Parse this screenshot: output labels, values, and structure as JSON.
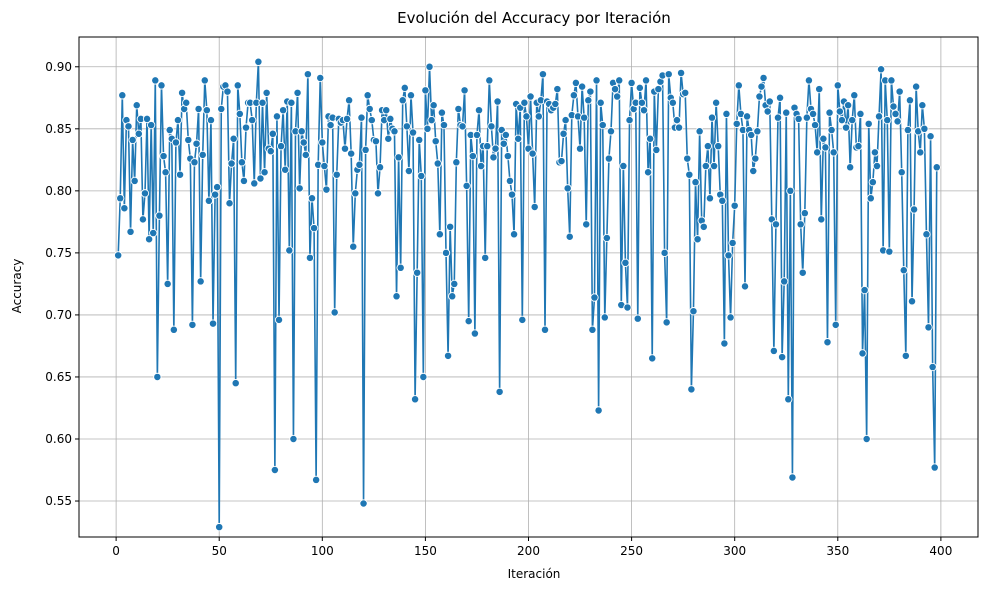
{
  "chart_data": {
    "type": "line",
    "title": "Evolución del Accuracy por Iteración",
    "xlabel": "Iteración",
    "ylabel": "Accuracy",
    "xlim": [
      -18,
      418
    ],
    "ylim": [
      0.521,
      0.924
    ],
    "xticks": [
      0,
      50,
      100,
      150,
      200,
      250,
      300,
      350,
      400
    ],
    "yticks": [
      0.55,
      0.6,
      0.65,
      0.7,
      0.75,
      0.8,
      0.85,
      0.9
    ],
    "ytick_labels": [
      "0.55",
      "0.60",
      "0.65",
      "0.70",
      "0.75",
      "0.80",
      "0.85",
      "0.90"
    ],
    "grid": true,
    "legend": "none",
    "markers": true,
    "colors": {
      "line": "#1f77b4",
      "marker_edge": "#ffffff",
      "grid": "#b0b0b0"
    },
    "series": [
      {
        "x_start": 1,
        "x_step": 1,
        "values": [
          0.748,
          0.794,
          0.877,
          0.786,
          0.857,
          0.852,
          0.767,
          0.841,
          0.808,
          0.869,
          0.846,
          0.858,
          0.777,
          0.798,
          0.858,
          0.761,
          0.853,
          0.766,
          0.889,
          0.65,
          0.78,
          0.885,
          0.828,
          0.815,
          0.725,
          0.849,
          0.842,
          0.688,
          0.839,
          0.857,
          0.813,
          0.879,
          0.866,
          0.871,
          0.841,
          0.826,
          0.692,
          0.823,
          0.838,
          0.866,
          0.727,
          0.829,
          0.889,
          0.865,
          0.792,
          0.857,
          0.693,
          0.797,
          0.803,
          0.529,
          0.866,
          0.884,
          0.885,
          0.88,
          0.79,
          0.822,
          0.842,
          0.645,
          0.885,
          0.862,
          0.823,
          0.808,
          0.851,
          0.871,
          0.871,
          0.857,
          0.806,
          0.871,
          0.904,
          0.81,
          0.871,
          0.815,
          0.879,
          0.834,
          0.832,
          0.846,
          0.575,
          0.86,
          0.696,
          0.836,
          0.865,
          0.817,
          0.872,
          0.752,
          0.871,
          0.6,
          0.848,
          0.879,
          0.802,
          0.848,
          0.839,
          0.829,
          0.894,
          0.746,
          0.794,
          0.77,
          0.567,
          0.821,
          0.891,
          0.839,
          0.82,
          0.801,
          0.86,
          0.853,
          0.859,
          0.702,
          0.813,
          0.858,
          0.855,
          0.857,
          0.834,
          0.858,
          0.873,
          0.83,
          0.755,
          0.798,
          0.817,
          0.821,
          0.859,
          0.548,
          0.833,
          0.877,
          0.866,
          0.857,
          0.841,
          0.84,
          0.798,
          0.819,
          0.865,
          0.857,
          0.865,
          0.842,
          0.858,
          0.85,
          0.848,
          0.715,
          0.827,
          0.738,
          0.873,
          0.883,
          0.852,
          0.816,
          0.877,
          0.847,
          0.632,
          0.734,
          0.841,
          0.812,
          0.65,
          0.881,
          0.85,
          0.9,
          0.857,
          0.869,
          0.84,
          0.822,
          0.765,
          0.863,
          0.853,
          0.75,
          0.667,
          0.771,
          0.715,
          0.725,
          0.823,
          0.866,
          0.853,
          0.852,
          0.881,
          0.804,
          0.695,
          0.845,
          0.828,
          0.685,
          0.845,
          0.865,
          0.82,
          0.836,
          0.746,
          0.836,
          0.889,
          0.852,
          0.827,
          0.834,
          0.872,
          0.638,
          0.849,
          0.838,
          0.845,
          0.828,
          0.808,
          0.797,
          0.765,
          0.87,
          0.842,
          0.867,
          0.696,
          0.871,
          0.86,
          0.834,
          0.876,
          0.83,
          0.787,
          0.871,
          0.86,
          0.873,
          0.894,
          0.688,
          0.872,
          0.87,
          0.865,
          0.867,
          0.87,
          0.882,
          0.823,
          0.824,
          0.846,
          0.857,
          0.802,
          0.763,
          0.861,
          0.877,
          0.887,
          0.86,
          0.834,
          0.884,
          0.859,
          0.773,
          0.873,
          0.88,
          0.688,
          0.714,
          0.889,
          0.623,
          0.871,
          0.853,
          0.698,
          0.762,
          0.826,
          0.848,
          0.887,
          0.882,
          0.876,
          0.889,
          0.708,
          0.82,
          0.742,
          0.706,
          0.857,
          0.887,
          0.866,
          0.871,
          0.697,
          0.883,
          0.871,
          0.865,
          0.889,
          0.815,
          0.842,
          0.665,
          0.88,
          0.833,
          0.882,
          0.888,
          0.893,
          0.75,
          0.694,
          0.894,
          0.875,
          0.871,
          0.851,
          0.857,
          0.851,
          0.895,
          0.878,
          0.879,
          0.826,
          0.813,
          0.64,
          0.703,
          0.807,
          0.761,
          0.848,
          0.776,
          0.771,
          0.82,
          0.836,
          0.794,
          0.859,
          0.82,
          0.871,
          0.836,
          0.797,
          0.792,
          0.677,
          0.862,
          0.748,
          0.698,
          0.758,
          0.788,
          0.854,
          0.885,
          0.862,
          0.849,
          0.723,
          0.86,
          0.849,
          0.845,
          0.816,
          0.826,
          0.848,
          0.876,
          0.884,
          0.891,
          0.869,
          0.864,
          0.872,
          0.777,
          0.671,
          0.773,
          0.859,
          0.875,
          0.666,
          0.727,
          0.863,
          0.632,
          0.8,
          0.569,
          0.867,
          0.862,
          0.858,
          0.773,
          0.734,
          0.782,
          0.859,
          0.889,
          0.866,
          0.862,
          0.853,
          0.831,
          0.882,
          0.777,
          0.842,
          0.835,
          0.678,
          0.863,
          0.849,
          0.831,
          0.692,
          0.885,
          0.864,
          0.857,
          0.872,
          0.851,
          0.869,
          0.819,
          0.857,
          0.877,
          0.835,
          0.836,
          0.862,
          0.669,
          0.72,
          0.6,
          0.854,
          0.794,
          0.807,
          0.831,
          0.82,
          0.86,
          0.898,
          0.752,
          0.889,
          0.857,
          0.751,
          0.889,
          0.868,
          0.862,
          0.856,
          0.88,
          0.815,
          0.736,
          0.667,
          0.849,
          0.873,
          0.711,
          0.785,
          0.884,
          0.848,
          0.831,
          0.869,
          0.85,
          0.765,
          0.69,
          0.844,
          0.658,
          0.577,
          0.819
        ]
      }
    ]
  }
}
